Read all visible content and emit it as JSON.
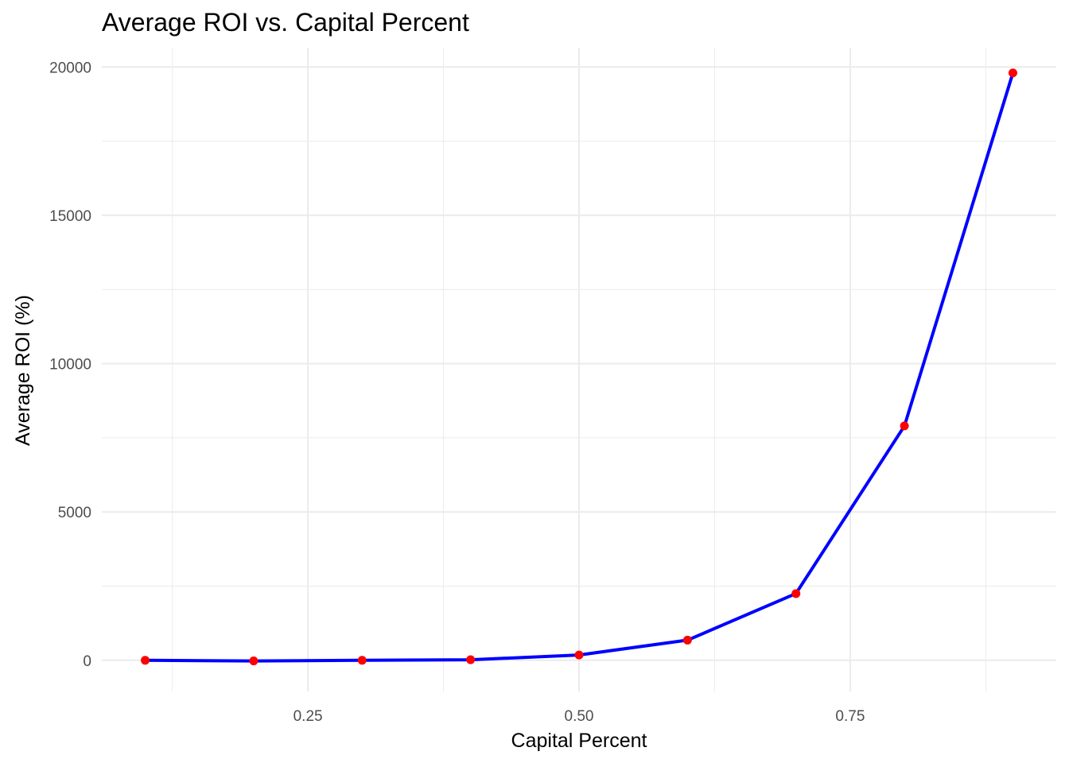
{
  "chart_data": {
    "type": "line",
    "title": "Average ROI vs. Capital Percent",
    "xlabel": "Capital Percent",
    "ylabel": "Average ROI (%)",
    "x": [
      0.1,
      0.2,
      0.3,
      0.4,
      0.5,
      0.6,
      0.7,
      0.8,
      0.9
    ],
    "series": [
      {
        "values": [
          0,
          -20,
          0,
          20,
          180,
          680,
          2250,
          7900,
          19800
        ]
      }
    ],
    "xlim": [
      0.06,
      0.94
    ],
    "ylim": [
      -1050,
      20650
    ],
    "x_ticks": [
      0.25,
      0.5,
      0.75
    ],
    "x_tick_labels": [
      "0.25",
      "0.50",
      "0.75"
    ],
    "y_ticks": [
      0,
      5000,
      10000,
      15000,
      20000
    ],
    "y_tick_labels": [
      "0",
      "5000",
      "10000",
      "15000",
      "20000"
    ],
    "x_minor_ticks": [
      0.125,
      0.375,
      0.625,
      0.875
    ],
    "y_minor_ticks": [
      2500,
      7500,
      12500,
      17500
    ],
    "grid": true,
    "legend": "none",
    "line_color": "#0000ff",
    "point_color": "#ff0000",
    "grid_color": "#ebebeb"
  }
}
